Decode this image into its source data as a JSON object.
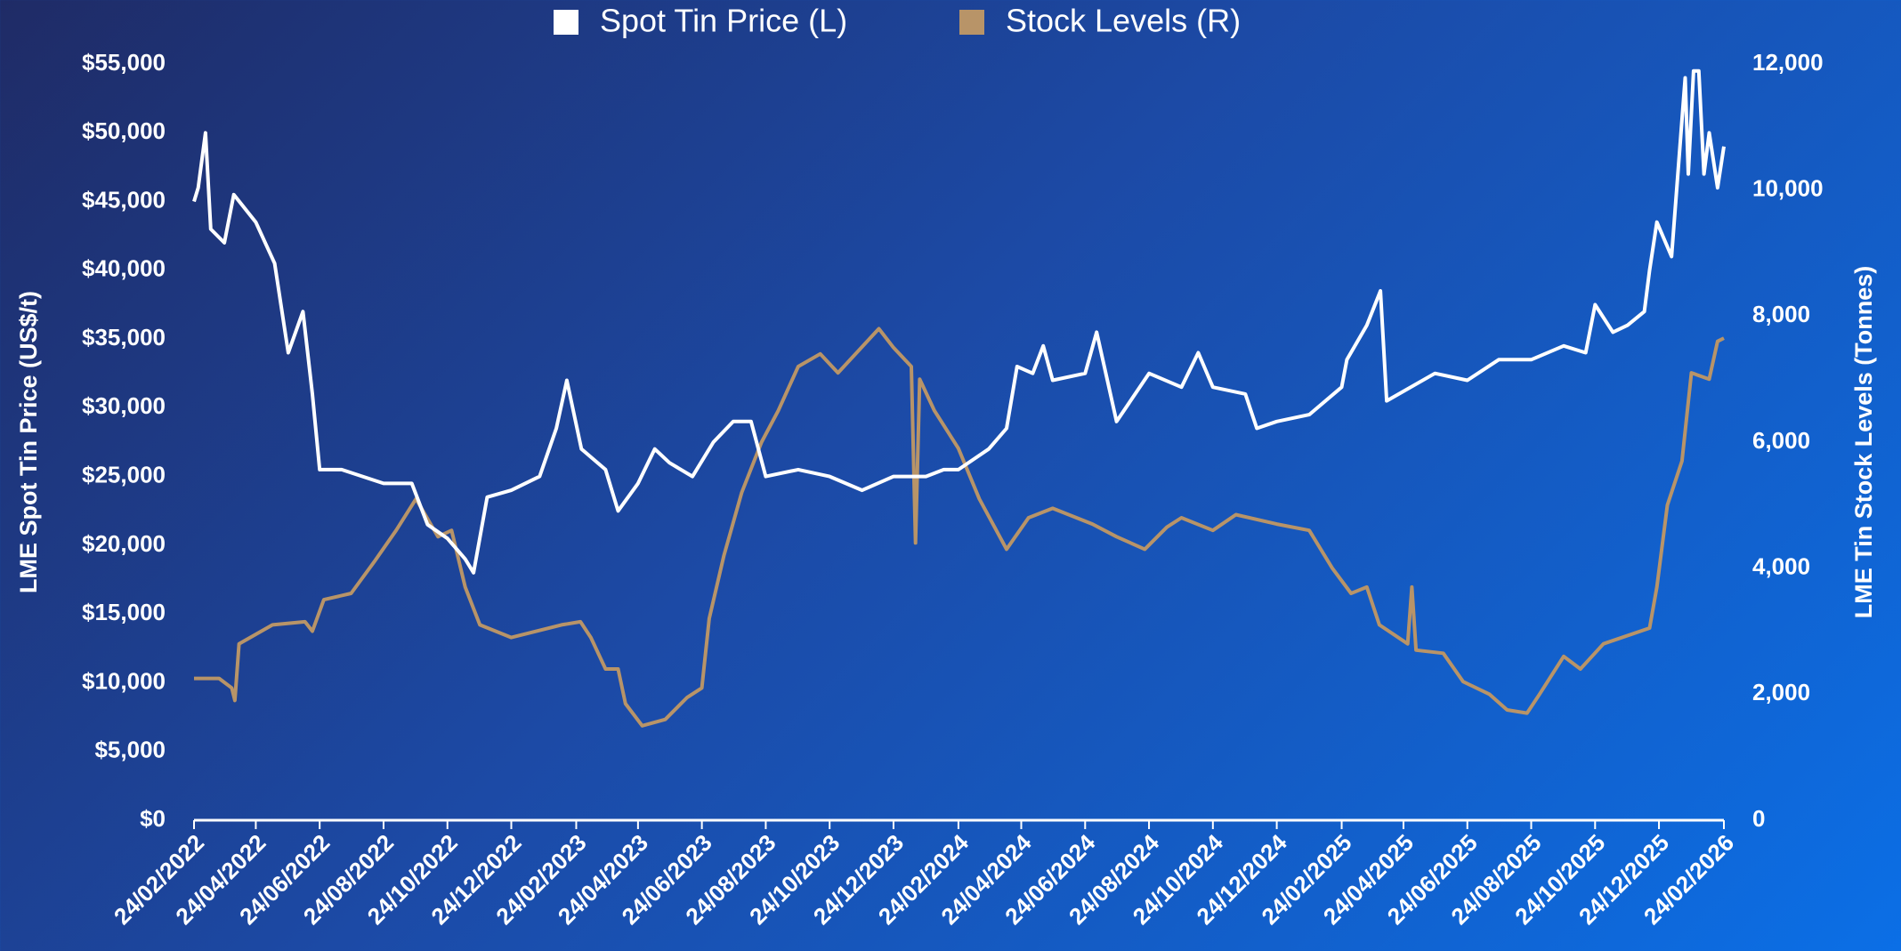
{
  "chart_data": {
    "type": "line",
    "xlim": [
      "24/02/2022",
      "24/02/2026"
    ],
    "xticks": [
      "24/02/2022",
      "24/04/2022",
      "24/06/2022",
      "24/08/2022",
      "24/10/2022",
      "24/12/2022",
      "24/02/2023",
      "24/04/2023",
      "24/06/2023",
      "24/08/2023",
      "24/10/2023",
      "24/12/2023",
      "24/02/2024",
      "24/04/2024",
      "24/06/2024",
      "24/08/2024",
      "24/10/2024",
      "24/12/2024",
      "24/02/2025",
      "24/04/2025",
      "24/06/2025",
      "24/08/2025",
      "24/10/2025",
      "24/12/2025",
      "24/02/2026"
    ],
    "ylabel": "LME Spot Tin Price (US$/t)",
    "y2label": "LME Tin Stock Levels (Tonnes)",
    "ylim": [
      0,
      55000
    ],
    "yticks": [
      {
        "value": 0,
        "label": "$0"
      },
      {
        "value": 5000,
        "label": "$5,000"
      },
      {
        "value": 10000,
        "label": "$10,000"
      },
      {
        "value": 15000,
        "label": "$15,000"
      },
      {
        "value": 20000,
        "label": "$20,000"
      },
      {
        "value": 25000,
        "label": "$25,000"
      },
      {
        "value": 30000,
        "label": "$30,000"
      },
      {
        "value": 35000,
        "label": "$35,000"
      },
      {
        "value": 40000,
        "label": "$40,000"
      },
      {
        "value": 45000,
        "label": "$45,000"
      },
      {
        "value": 50000,
        "label": "$50,000"
      },
      {
        "value": 55000,
        "label": "$55,000"
      }
    ],
    "y2lim": [
      0,
      12000
    ],
    "y2ticks": [
      0,
      {
        "value": 2000,
        "label": "2,000"
      },
      {
        "value": 4000,
        "label": "4,000"
      },
      {
        "value": 6000,
        "label": "6,000"
      },
      {
        "value": 8000,
        "label": "8,000"
      },
      {
        "value": 10000,
        "label": "10,000"
      },
      {
        "value": 12000,
        "label": "12,000"
      }
    ],
    "grid": false,
    "legend": "top",
    "series": [
      {
        "name": "Spot Tin Price (L)",
        "color": "#ffffff",
        "axis": "y",
        "x": [
          "24/02/2022",
          "28/02/2022",
          "07/03/2022",
          "12/03/2022",
          "25/03/2022",
          "03/04/2022",
          "24/04/2022",
          "12/05/2022",
          "25/05/2022",
          "08/06/2022",
          "17/06/2022",
          "24/06/2022",
          "15/07/2022",
          "24/08/2022",
          "20/09/2022",
          "05/10/2022",
          "24/10/2022",
          "10/11/2022",
          "18/11/2022",
          "01/12/2022",
          "24/12/2022",
          "20/01/2023",
          "05/02/2023",
          "15/02/2023",
          "01/03/2023",
          "24/03/2023",
          "05/04/2023",
          "24/04/2023",
          "10/05/2023",
          "24/05/2023",
          "15/06/2023",
          "05/07/2023",
          "24/07/2023",
          "10/08/2023",
          "24/08/2023",
          "24/09/2023",
          "24/10/2023",
          "24/11/2023",
          "24/12/2023",
          "24/01/2024",
          "10/02/2024",
          "24/02/2024",
          "24/03/2024",
          "10/04/2024",
          "20/04/2024",
          "05/05/2024",
          "15/05/2024",
          "24/05/2024",
          "24/06/2024",
          "05/07/2024",
          "24/07/2024",
          "24/08/2024",
          "24/09/2024",
          "10/10/2024",
          "24/10/2024",
          "24/11/2024",
          "05/12/2024",
          "24/12/2024",
          "24/01/2025",
          "24/02/2025",
          "01/03/2025",
          "20/03/2025",
          "02/04/2025",
          "08/04/2025",
          "24/05/2025",
          "24/06/2025",
          "24/07/2025",
          "24/08/2025",
          "24/09/2025",
          "15/10/2025",
          "24/10/2025",
          "10/11/2025",
          "24/11/2025",
          "10/12/2025",
          "15/12/2025",
          "22/12/2025",
          "05/01/2026",
          "18/01/2026",
          "21/01/2026",
          "26/01/2026",
          "31/01/2026",
          "05/02/2026",
          "10/02/2026",
          "18/02/2026",
          "24/02/2026"
        ],
        "values": [
          45000,
          46000,
          50000,
          43000,
          42000,
          45500,
          43500,
          40500,
          34000,
          37000,
          31000,
          25500,
          25500,
          24500,
          24500,
          21500,
          20500,
          19000,
          18000,
          23500,
          24000,
          25000,
          28500,
          32000,
          27000,
          25500,
          22500,
          24500,
          27000,
          26000,
          25000,
          27500,
          29000,
          29000,
          25000,
          25500,
          25000,
          24000,
          25000,
          25000,
          25500,
          25500,
          27000,
          28500,
          33000,
          32500,
          34500,
          32000,
          32500,
          35500,
          29000,
          32500,
          31500,
          34000,
          31500,
          31000,
          28500,
          29000,
          29500,
          31500,
          33500,
          36000,
          38500,
          30500,
          32500,
          32000,
          33500,
          33500,
          34500,
          34000,
          37500,
          35500,
          36000,
          37000,
          40000,
          43500,
          41000,
          54000,
          47000,
          54500,
          54500,
          47000,
          50000,
          46000,
          49000
        ]
      },
      {
        "name": "Stock Levels (R)",
        "color": "#b89468",
        "axis": "y2",
        "x": [
          "24/02/2022",
          "20/03/2022",
          "01/04/2022",
          "04/04/2022",
          "08/04/2022",
          "10/05/2022",
          "10/06/2022",
          "17/06/2022",
          "28/06/2022",
          "24/07/2022",
          "15/08/2022",
          "05/09/2022",
          "24/09/2022",
          "15/10/2022",
          "28/10/2022",
          "10/11/2022",
          "24/11/2022",
          "24/12/2022",
          "10/02/2023",
          "28/02/2023",
          "10/03/2023",
          "24/03/2023",
          "05/04/2023",
          "12/04/2023",
          "28/04/2023",
          "20/05/2023",
          "10/06/2023",
          "24/06/2023",
          "01/07/2023",
          "15/07/2023",
          "01/08/2023",
          "20/08/2023",
          "05/09/2023",
          "24/09/2023",
          "15/10/2023",
          "01/11/2023",
          "10/12/2023",
          "24/12/2023",
          "10/01/2024",
          "14/01/2024",
          "18/01/2024",
          "01/02/2024",
          "24/02/2024",
          "15/03/2024",
          "10/04/2024",
          "01/05/2024",
          "24/05/2024",
          "01/07/2024",
          "24/07/2024",
          "20/08/2024",
          "10/09/2024",
          "24/09/2024",
          "24/10/2024",
          "15/11/2024",
          "24/12/2024",
          "24/01/2025",
          "15/02/2025",
          "05/03/2025",
          "20/03/2025",
          "01/04/2025",
          "28/04/2025",
          "02/05/2025",
          "06/05/2025",
          "01/06/2025",
          "20/06/2025",
          "15/07/2025",
          "01/08/2025",
          "20/08/2025",
          "01/09/2025",
          "24/09/2025",
          "10/10/2025",
          "01/11/2025",
          "15/12/2025",
          "22/12/2025",
          "01/01/2026",
          "15/01/2026",
          "24/01/2026",
          "10/02/2026",
          "18/02/2026",
          "24/02/2026"
        ],
        "values": [
          2250,
          2250,
          2100,
          1900,
          2800,
          3100,
          3150,
          3000,
          3500,
          3600,
          4100,
          4600,
          5100,
          4500,
          4600,
          3700,
          3100,
          2900,
          3100,
          3150,
          2900,
          2400,
          2400,
          1850,
          1500,
          1600,
          1950,
          2100,
          3200,
          4200,
          5200,
          6000,
          6500,
          7200,
          7400,
          7100,
          7800,
          7500,
          7200,
          4400,
          7000,
          6500,
          5900,
          5100,
          4300,
          4800,
          4950,
          4700,
          4500,
          4300,
          4650,
          4800,
          4600,
          4850,
          4700,
          4600,
          4000,
          3600,
          3700,
          3100,
          2800,
          3700,
          2700,
          2650,
          2200,
          2000,
          1750,
          1700,
          2000,
          2600,
          2400,
          2800,
          3050,
          3700,
          5000,
          5700,
          7100,
          7000,
          7600,
          7650
        ]
      }
    ]
  }
}
